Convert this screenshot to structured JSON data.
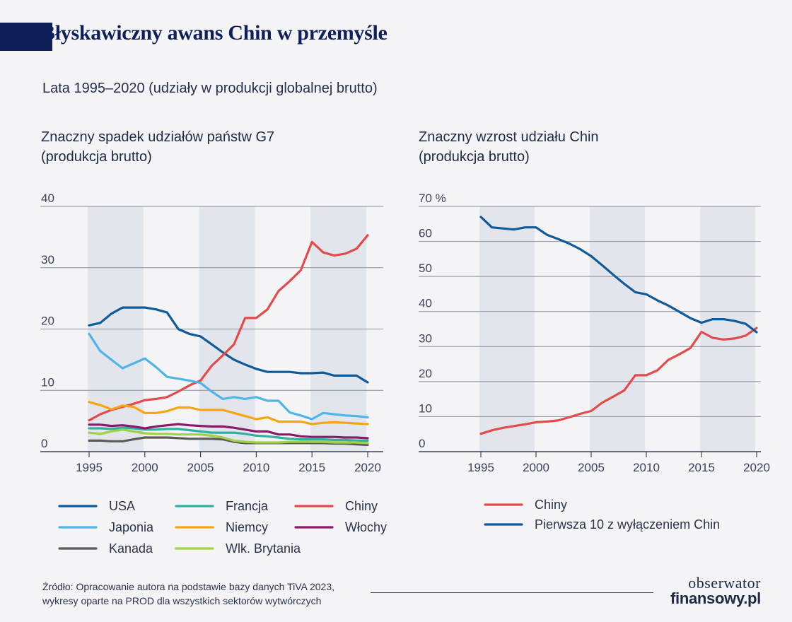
{
  "header": {
    "title": "Błyskawiczny awans Chin w przemyśle",
    "subtitle": "Lata 1995–2020 (udziały w produkcji globalnej brutto)"
  },
  "source": "Źródło: Opracowanie autora na podstawie bazy danych TiVA 2023,\nwykresy oparte na PROD dla wszystkich sektorów wytwórczych",
  "logo": {
    "top": "obserwator",
    "bottom": "finansowy.pl"
  },
  "chart_data": [
    {
      "type": "line",
      "title": "Znaczny spadek udziałów państw G7\n(produkcja brutto)",
      "xlim": [
        1995,
        2020
      ],
      "ylim": [
        0,
        40
      ],
      "x_ticks": [
        "1995",
        "2000",
        "2005",
        "2010",
        "2015",
        "2020"
      ],
      "y_ticks": [
        "0",
        "10",
        "20",
        "30",
        "40"
      ],
      "shaded_periods": [
        [
          1995,
          2000
        ],
        [
          2005,
          2010
        ],
        [
          2015,
          2020
        ]
      ],
      "grid": true,
      "legend_position": "bottom",
      "x": [
        1995,
        1996,
        1997,
        1998,
        1999,
        2000,
        2001,
        2002,
        2003,
        2004,
        2005,
        2006,
        2007,
        2008,
        2009,
        2010,
        2011,
        2012,
        2013,
        2014,
        2015,
        2016,
        2017,
        2018,
        2019,
        2020
      ],
      "series": [
        {
          "name": "USA",
          "color": "#0e5a9a",
          "values": [
            20.6,
            21,
            22.5,
            23.5,
            23.5,
            23.5,
            23.2,
            22.7,
            20,
            19.2,
            18.8,
            17.5,
            16.2,
            15,
            14.2,
            13.5,
            13,
            13,
            13,
            12.8,
            12.8,
            12.9,
            12.4,
            12.4,
            12.4,
            11.3
          ]
        },
        {
          "name": "Francja",
          "color": "#2fb1a0",
          "values": [
            3.8,
            3.8,
            3.7,
            3.9,
            3.8,
            3.6,
            3.6,
            3.7,
            3.7,
            3.5,
            3.3,
            3.1,
            3.1,
            3.1,
            2.9,
            2.6,
            2.5,
            2.3,
            2.1,
            2,
            2,
            2,
            1.9,
            1.9,
            1.8,
            1.8
          ]
        },
        {
          "name": "Chiny",
          "color": "#e34b4b",
          "values": [
            5.1,
            6.1,
            6.8,
            7.3,
            7.8,
            8.4,
            8.6,
            8.9,
            9.8,
            10.8,
            11.6,
            14,
            15.7,
            17.5,
            21.8,
            21.8,
            23.2,
            26.2,
            27.8,
            29.6,
            34.2,
            32.5,
            32,
            32.3,
            33.1,
            35.3
          ]
        },
        {
          "name": "Japonia",
          "color": "#4fb5e8",
          "values": [
            19.2,
            16.4,
            15,
            13.6,
            14.4,
            15.2,
            13.8,
            12.2,
            11.9,
            11.6,
            11.2,
            9.8,
            8.6,
            8.9,
            8.6,
            8.9,
            8.3,
            8.3,
            6.4,
            5.9,
            5.3,
            6.3,
            6.1,
            5.9,
            5.8,
            5.6
          ]
        },
        {
          "name": "Niemcy",
          "color": "#f5a50f",
          "values": [
            8.1,
            7.6,
            6.9,
            7.5,
            7.3,
            6.3,
            6.3,
            6.6,
            7.2,
            7.2,
            6.8,
            6.8,
            6.8,
            6.3,
            5.8,
            5.3,
            5.6,
            4.9,
            4.9,
            4.9,
            4.5,
            4.7,
            4.8,
            4.7,
            4.6,
            4.5
          ]
        },
        {
          "name": "Włochy",
          "color": "#8a1a6a",
          "values": [
            4.4,
            4.4,
            4.2,
            4.3,
            4.1,
            3.8,
            4.1,
            4.3,
            4.5,
            4.3,
            4.2,
            4.1,
            4.1,
            3.9,
            3.6,
            3.3,
            3.3,
            2.8,
            2.8,
            2.5,
            2.4,
            2.4,
            2.4,
            2.3,
            2.3,
            2.2
          ]
        },
        {
          "name": "Kanada",
          "color": "#5a5a5a",
          "values": [
            1.8,
            1.8,
            1.7,
            1.7,
            2,
            2.3,
            2.3,
            2.3,
            2.2,
            2.1,
            2.1,
            2.1,
            2,
            1.6,
            1.4,
            1.4,
            1.4,
            1.4,
            1.4,
            1.4,
            1.4,
            1.4,
            1.3,
            1.3,
            1.2,
            1.1
          ]
        },
        {
          "name": "Wlk. Brytania",
          "color": "#9fd046",
          "values": [
            3.1,
            2.9,
            3.3,
            3.6,
            3.3,
            3,
            2.9,
            2.9,
            2.8,
            2.8,
            2.8,
            2.6,
            2.3,
            1.8,
            1.6,
            1.5,
            1.5,
            1.5,
            1.6,
            1.6,
            1.6,
            1.6,
            1.5,
            1.5,
            1.5,
            1.4
          ]
        }
      ]
    },
    {
      "type": "line",
      "title": "Znaczny wzrost udziału Chin\n(produkcja brutto)",
      "xlim": [
        1995,
        2020
      ],
      "ylim": [
        0,
        70
      ],
      "x_ticks": [
        "1995",
        "2000",
        "2005",
        "2010",
        "2015",
        "2020"
      ],
      "y_ticks": [
        "0",
        "10",
        "20",
        "30",
        "40",
        "50",
        "60",
        "70 %"
      ],
      "shaded_periods": [
        [
          1995,
          2000
        ],
        [
          2005,
          2010
        ],
        [
          2015,
          2020
        ]
      ],
      "grid": true,
      "legend_position": "bottom",
      "x": [
        1995,
        1996,
        1997,
        1998,
        1999,
        2000,
        2001,
        2002,
        2003,
        2004,
        2005,
        2006,
        2007,
        2008,
        2009,
        2010,
        2011,
        2012,
        2013,
        2014,
        2015,
        2016,
        2017,
        2018,
        2019,
        2020
      ],
      "series": [
        {
          "name": "Chiny",
          "color": "#e34b4b",
          "values": [
            5.1,
            6.1,
            6.8,
            7.3,
            7.8,
            8.4,
            8.6,
            8.9,
            9.8,
            10.8,
            11.6,
            14,
            15.7,
            17.5,
            21.8,
            21.8,
            23.2,
            26.2,
            27.8,
            29.6,
            34.2,
            32.5,
            32,
            32.3,
            33.1,
            35.3
          ]
        },
        {
          "name": "Pierwsza 10 z wyłączeniem Chin",
          "color": "#0e5a9a",
          "values": [
            67,
            64,
            63.7,
            63.4,
            64,
            64,
            61.9,
            60.7,
            59.4,
            57.8,
            55.8,
            53.2,
            50.5,
            47.9,
            45.5,
            44.9,
            43.2,
            41.7,
            39.9,
            38.1,
            36.8,
            37.8,
            37.8,
            37.3,
            36.5,
            34.1
          ]
        }
      ]
    }
  ]
}
